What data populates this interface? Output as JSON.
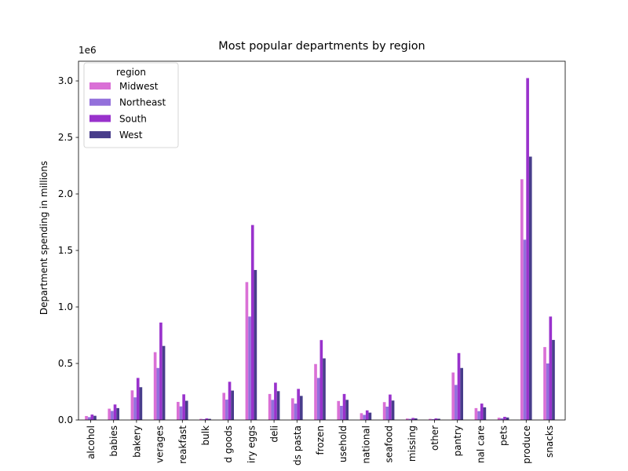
{
  "chart_data": {
    "type": "bar",
    "title": "Most popular departments by region",
    "xlabel": "",
    "ylabel": "Department spending in millions",
    "scale_label": "1e6",
    "ylim": [
      0,
      3174000
    ],
    "yticks": [
      0,
      500000,
      1000000,
      1500000,
      2000000,
      2500000,
      3000000
    ],
    "ytick_labels": [
      "0.0",
      "0.5",
      "1.0",
      "1.5",
      "2.0",
      "2.5",
      "3.0"
    ],
    "grid": false,
    "legend": {
      "title": "region",
      "placement": "top-left"
    },
    "category_labels": [
      "alcohol",
      "babies",
      "bakery",
      "verages",
      "reakfast",
      "bulk",
      "d goods",
      "iry eggs",
      "deli",
      "ds pasta",
      "frozen",
      "usehold",
      "national",
      "seafood",
      "missing",
      "other",
      "pantry",
      "nal care",
      "pets",
      "produce",
      "snacks"
    ],
    "series": [
      {
        "name": "Midwest",
        "color": "#da70d6",
        "values": [
          35000,
          100000,
          262000,
          600000,
          160000,
          10000,
          240000,
          1220000,
          230000,
          192000,
          495000,
          168000,
          60000,
          158000,
          13000,
          10000,
          420000,
          105000,
          20000,
          2130000,
          645000
        ]
      },
      {
        "name": "Northeast",
        "color": "#9370db",
        "values": [
          25000,
          80000,
          200000,
          460000,
          120000,
          7000,
          180000,
          915000,
          178000,
          145000,
          372000,
          125000,
          45000,
          118000,
          10000,
          7000,
          310000,
          78000,
          15000,
          1595000,
          500000
        ]
      },
      {
        "name": "South",
        "color": "#9932cc",
        "values": [
          48000,
          137000,
          372000,
          862000,
          227000,
          14000,
          338000,
          1725000,
          330000,
          275000,
          707000,
          230000,
          85000,
          225000,
          18000,
          14000,
          592000,
          145000,
          28000,
          3025000,
          915000
        ]
      },
      {
        "name": "West",
        "color": "#483d8b",
        "values": [
          37000,
          105000,
          290000,
          655000,
          170000,
          10000,
          260000,
          1327000,
          255000,
          213000,
          545000,
          178000,
          65000,
          172000,
          14000,
          11000,
          460000,
          112000,
          22000,
          2330000,
          708000
        ]
      }
    ]
  }
}
